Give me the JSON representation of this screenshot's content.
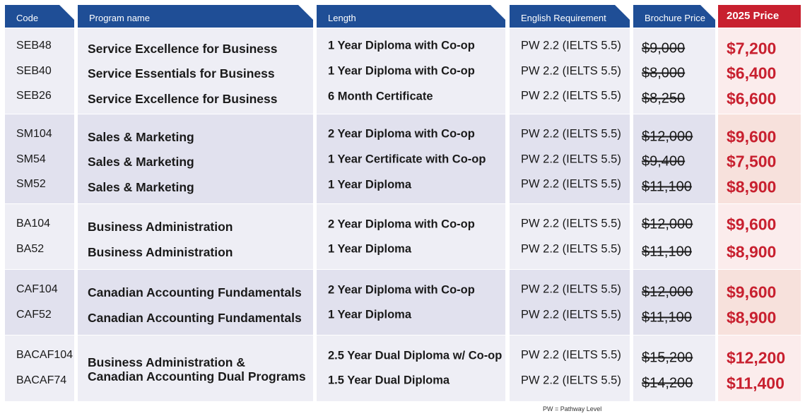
{
  "headers": {
    "code": "Code",
    "program": "Program name",
    "length": "Length",
    "english": "English Requirement",
    "brochure": "Brochure Price",
    "price": "2025 Price"
  },
  "rows": [
    {
      "code": "SEB48",
      "program": "Service Excellence for Business",
      "length": "1 Year Diploma with Co-op",
      "english": "PW 2.2 (IELTS 5.5)",
      "brochure": "$9,000",
      "price": "$7,200"
    },
    {
      "code": "SEB40",
      "program": "Service Essentials for Business",
      "length": "1 Year Diploma with Co-op",
      "english": "PW 2.2 (IELTS 5.5)",
      "brochure": "$8,000",
      "price": "$6,400"
    },
    {
      "code": "SEB26",
      "program": "Service Excellence for Business",
      "length": "6 Month Certificate",
      "english": "PW 2.2 (IELTS 5.5)",
      "brochure": "$8,250",
      "price": "$6,600"
    },
    {
      "code": "SM104",
      "program": "Sales & Marketing",
      "length": "2 Year Diploma with Co-op",
      "english": "PW 2.2 (IELTS 5.5)",
      "brochure": "$12,000",
      "price": "$9,600"
    },
    {
      "code": "SM54",
      "program": "Sales & Marketing",
      "length": "1 Year Certificate with Co-op",
      "english": "PW 2.2 (IELTS 5.5)",
      "brochure": "$9,400",
      "price": "$7,500"
    },
    {
      "code": "SM52",
      "program": "Sales & Marketing",
      "length": "1 Year Diploma",
      "english": "PW 2.2 (IELTS 5.5)",
      "brochure": "$11,100",
      "price": "$8,900"
    },
    {
      "code": "BA104",
      "program": "Business Administration",
      "length": "2 Year Diploma with Co-op",
      "english": "PW 2.2 (IELTS 5.5)",
      "brochure": "$12,000",
      "price": "$9,600"
    },
    {
      "code": "BA52",
      "program": "Business Administration",
      "length": "1 Year Diploma",
      "english": "PW 2.2 (IELTS 5.5)",
      "brochure": "$11,100",
      "price": "$8,900"
    },
    {
      "code": "CAF104",
      "program": "Canadian Accounting Fundamentals",
      "length": "2 Year Diploma with Co-op",
      "english": "PW 2.2 (IELTS 5.5)",
      "brochure": "$12,000",
      "price": "$9,600"
    },
    {
      "code": "CAF52",
      "program": "Canadian Accounting Fundamentals",
      "length": "1 Year Diploma",
      "english": "PW 2.2 (IELTS 5.5)",
      "brochure": "$11,100",
      "price": "$8,900"
    },
    {
      "code": "BACAF104",
      "length": "2.5 Year Dual Diploma w/ Co-op",
      "english": "PW 2.2 (IELTS 5.5)",
      "brochure": "$15,200",
      "price": "$12,200"
    },
    {
      "code": "BACAF74",
      "length": "1.5 Year Dual Diploma",
      "english": "PW 2.2 (IELTS 5.5)",
      "brochure": "$14,200",
      "price": "$11,400"
    }
  ],
  "dual_program": {
    "line1": "Business Administration &",
    "line2": "Canadian Accounting Dual Programs"
  },
  "footnote": "PW = Pathway Level",
  "colors": {
    "header_blue": "#1f4e96",
    "header_red": "#c8202f",
    "price_red": "#c8202f"
  }
}
